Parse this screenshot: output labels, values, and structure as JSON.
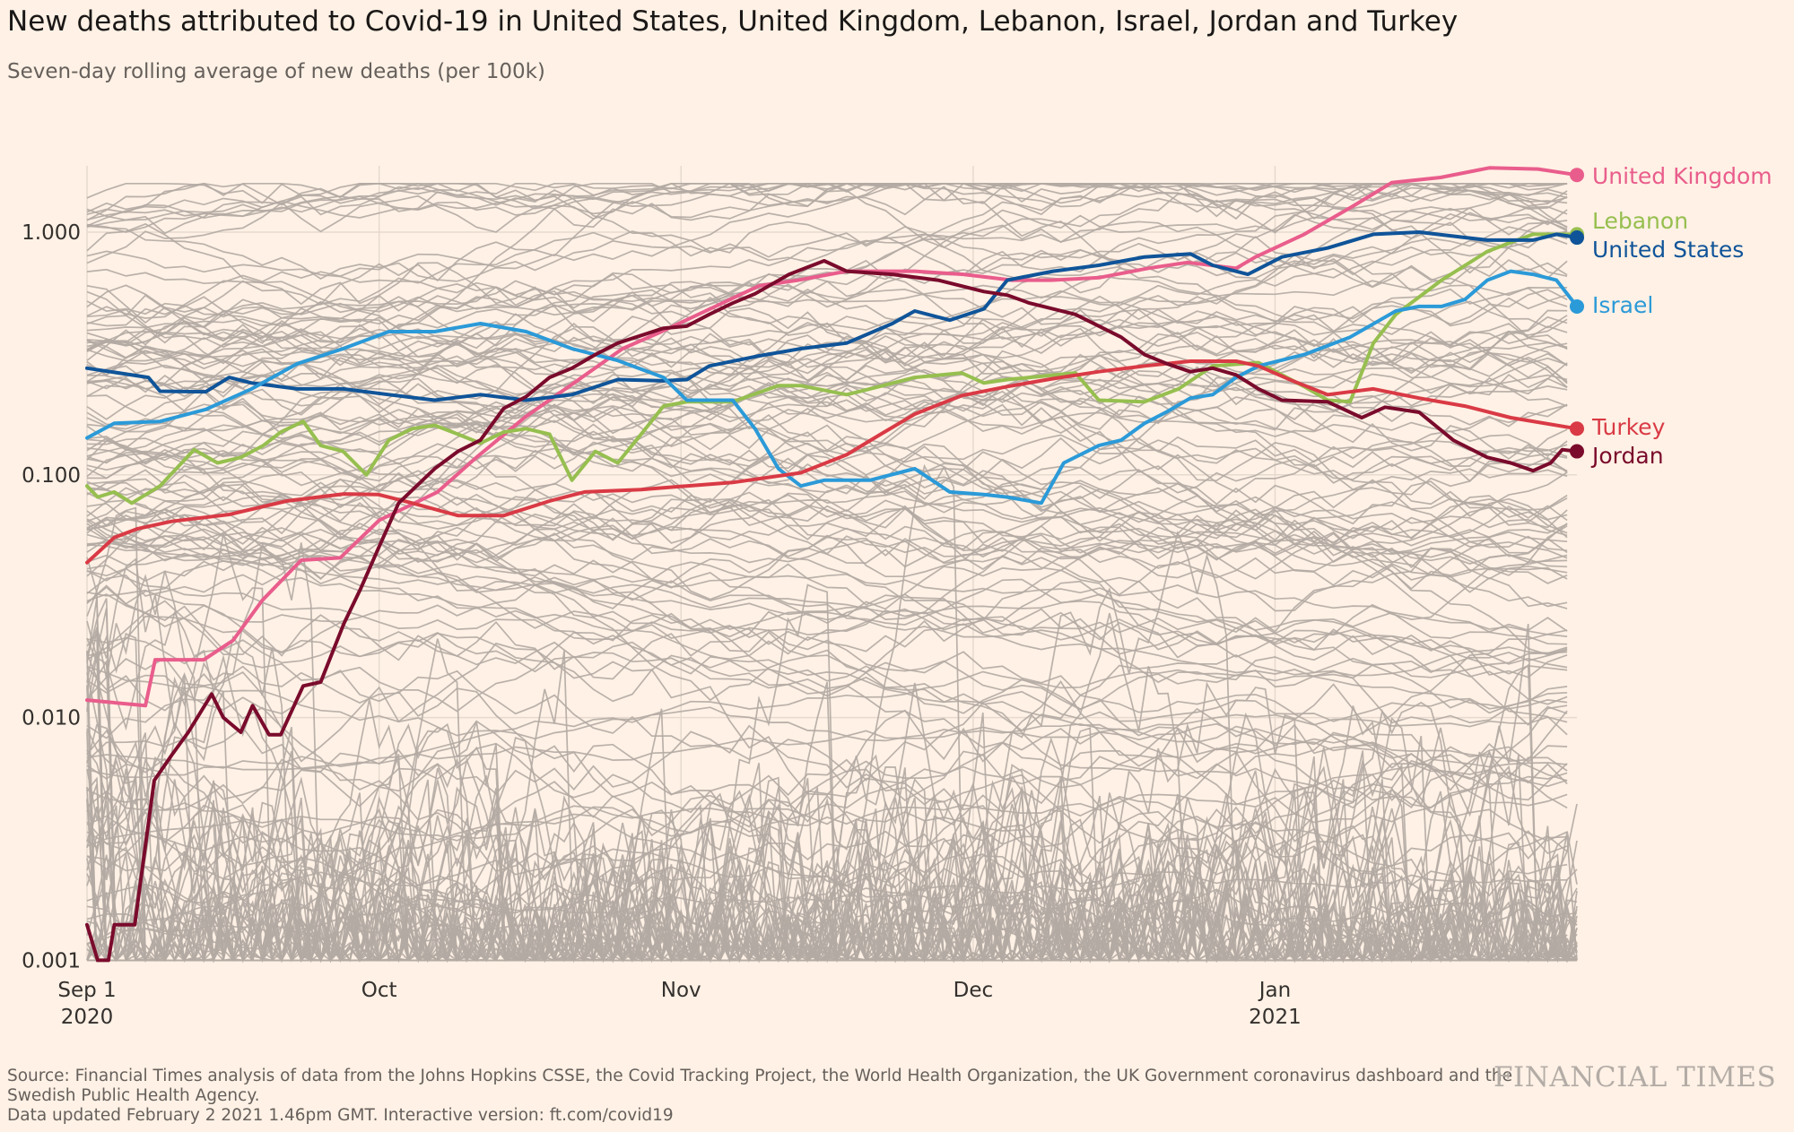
{
  "chart_data": {
    "type": "line",
    "title": "New deaths attributed to Covid-19 in United States, United Kingdom, Lebanon, Israel, Jordan and Turkey",
    "subtitle": "Seven-day rolling average of new deaths (per 100k)",
    "xlabel": "",
    "ylabel": "",
    "x_unit": "days since 2020-09-01",
    "xlim": [
      0,
      153
    ],
    "yscale": "log",
    "ylim": [
      0.001,
      1.88
    ],
    "y_ticks": [
      {
        "value": 1,
        "label": "1.000"
      },
      {
        "value": 0.1,
        "label": "0.100"
      },
      {
        "value": 0.01,
        "label": "0.010"
      },
      {
        "value": 0.001,
        "label": "0.001"
      }
    ],
    "x_ticks": [
      {
        "day": 0,
        "label": "Sep 1",
        "year": "2020"
      },
      {
        "day": 30,
        "label": "Oct",
        "year": ""
      },
      {
        "day": 61,
        "label": "Nov",
        "year": ""
      },
      {
        "day": 91,
        "label": "Dec",
        "year": ""
      },
      {
        "day": 122,
        "label": "Jan",
        "year": "2021"
      }
    ],
    "grid": true,
    "legend": "direct labels at right end of lines",
    "series": [
      {
        "name": "United Kingdom",
        "color": "#e95d8c",
        "x": [
          0,
          6,
          7,
          12,
          15,
          18,
          22,
          26,
          30,
          36,
          40,
          45,
          50,
          55,
          59,
          64,
          69,
          73,
          78,
          85,
          90,
          95,
          99,
          104,
          109,
          113,
          118,
          120,
          125,
          130,
          134,
          139,
          144,
          149,
          153
        ],
        "values": [
          0.0118,
          0.0112,
          0.0173,
          0.0173,
          0.0208,
          0.0304,
          0.0445,
          0.0455,
          0.065,
          0.085,
          0.118,
          0.173,
          0.239,
          0.331,
          0.389,
          0.483,
          0.601,
          0.634,
          0.69,
          0.69,
          0.67,
          0.634,
          0.634,
          0.65,
          0.71,
          0.75,
          0.71,
          0.79,
          0.98,
          1.28,
          1.6,
          1.68,
          1.84,
          1.82,
          1.72
        ]
      },
      {
        "name": "Lebanon",
        "color": "#96bf4f",
        "x": [
          0,
          1.1,
          2.8,
          4.6,
          7.5,
          11,
          13.4,
          15.8,
          18.1,
          19.9,
          22.2,
          24,
          26.3,
          28.7,
          31,
          33.4,
          35.7,
          38.1,
          40.4,
          42.8,
          45.1,
          47.5,
          49.8,
          52.2,
          54.5,
          56.9,
          59.2,
          61.6,
          66.3,
          71,
          73.3,
          78,
          80.4,
          85,
          89.8,
          92.1,
          94.5,
          96.8,
          101.5,
          103.9,
          108.6,
          112.1,
          115.6,
          120.3,
          125,
          127.4,
          129.7,
          132.1,
          134.4,
          139.1,
          143.8,
          146.2,
          148.5,
          153
        ],
        "values": [
          0.09,
          0.081,
          0.085,
          0.0765,
          0.09,
          0.127,
          0.112,
          0.118,
          0.132,
          0.15,
          0.166,
          0.132,
          0.125,
          0.1,
          0.139,
          0.155,
          0.16,
          0.147,
          0.135,
          0.15,
          0.155,
          0.147,
          0.095,
          0.125,
          0.112,
          0.147,
          0.192,
          0.2,
          0.2,
          0.233,
          0.233,
          0.214,
          0.226,
          0.252,
          0.263,
          0.239,
          0.247,
          0.252,
          0.263,
          0.203,
          0.2,
          0.226,
          0.281,
          0.29,
          0.231,
          0.203,
          0.2,
          0.349,
          0.458,
          0.634,
          0.832,
          0.907,
          0.98,
          0.98
        ]
      },
      {
        "name": "United States",
        "color": "#0f5499",
        "x": [
          0,
          6.3,
          7.5,
          12.2,
          14.6,
          16.9,
          21.6,
          26.3,
          31,
          35.7,
          40.4,
          45.1,
          49.8,
          54.5,
          59.2,
          61.6,
          63.9,
          68.6,
          73.3,
          78,
          82.7,
          85,
          88.6,
          92.1,
          94.5,
          99.2,
          103.9,
          108.6,
          113.3,
          115.6,
          119.2,
          122.7,
          127.4,
          132.1,
          136.8,
          141.5,
          143.8,
          148.5,
          150.9,
          153
        ],
        "values": [
          0.275,
          0.252,
          0.221,
          0.22,
          0.252,
          0.239,
          0.226,
          0.226,
          0.214,
          0.203,
          0.214,
          0.203,
          0.214,
          0.247,
          0.244,
          0.247,
          0.281,
          0.307,
          0.331,
          0.349,
          0.42,
          0.473,
          0.434,
          0.483,
          0.634,
          0.69,
          0.73,
          0.79,
          0.814,
          0.73,
          0.67,
          0.79,
          0.86,
          0.98,
          1.0,
          0.95,
          0.927,
          0.927,
          0.98,
          0.95
        ]
      },
      {
        "name": "Israel",
        "color": "#2b9ad8",
        "x": [
          0,
          2.8,
          7.5,
          12.2,
          16.9,
          21.6,
          26.3,
          31,
          35.7,
          40.4,
          45.1,
          49.8,
          54.5,
          59.2,
          61.6,
          66.3,
          68.6,
          71,
          73.3,
          75.7,
          80.4,
          85,
          88.6,
          92.1,
          94.5,
          98,
          100.3,
          103.9,
          106.2,
          108.6,
          110.9,
          113.3,
          115.6,
          118,
          120.3,
          125,
          129.7,
          134.4,
          136.8,
          139.1,
          141.5,
          143.8,
          146.2,
          148.5,
          150.9,
          153
        ],
        "values": [
          0.142,
          0.163,
          0.166,
          0.186,
          0.226,
          0.287,
          0.331,
          0.389,
          0.389,
          0.42,
          0.389,
          0.331,
          0.296,
          0.252,
          0.203,
          0.203,
          0.155,
          0.106,
          0.09,
          0.095,
          0.095,
          0.106,
          0.085,
          0.083,
          0.081,
          0.0765,
          0.112,
          0.132,
          0.139,
          0.163,
          0.182,
          0.207,
          0.214,
          0.252,
          0.281,
          0.313,
          0.369,
          0.473,
          0.494,
          0.494,
          0.528,
          0.634,
          0.69,
          0.67,
          0.634,
          0.494
        ]
      },
      {
        "name": "Turkey",
        "color": "#d93a45",
        "x": [
          0,
          2.8,
          5.2,
          8.7,
          14.6,
          20.5,
          26.4,
          29.9,
          33.4,
          38.1,
          42.8,
          47.5,
          51.1,
          56.9,
          61.6,
          66.3,
          73.3,
          78,
          81.5,
          85,
          89.8,
          94.5,
          99.2,
          103.9,
          108.6,
          113.3,
          118,
          120.3,
          123.8,
          127.4,
          132.1,
          136.8,
          141.5,
          146.2,
          153
        ],
        "values": [
          0.0435,
          0.0552,
          0.06,
          0.0643,
          0.0686,
          0.078,
          0.0834,
          0.083,
          0.0765,
          0.068,
          0.068,
          0.078,
          0.085,
          0.087,
          0.09,
          0.093,
          0.102,
          0.121,
          0.147,
          0.178,
          0.212,
          0.231,
          0.249,
          0.266,
          0.281,
          0.294,
          0.294,
          0.281,
          0.244,
          0.214,
          0.226,
          0.207,
          0.192,
          0.172,
          0.155
        ]
      },
      {
        "name": "Jordan",
        "color": "#7a0b2c",
        "x": [
          0,
          1.1,
          2.2,
          2.8,
          4.9,
          6.9,
          8.7,
          10.4,
          12.8,
          14,
          15.8,
          17,
          18.7,
          19.9,
          22.2,
          24,
          26.4,
          28.1,
          29.9,
          32,
          35.7,
          38.1,
          40.4,
          42.8,
          45.1,
          47.5,
          49.8,
          52.2,
          54.5,
          59.2,
          61.6,
          63.9,
          66.3,
          68.6,
          72.1,
          75.7,
          78,
          82.7,
          87.4,
          92.1,
          94.5,
          96.8,
          101.5,
          106.2,
          108.6,
          110.9,
          113.3,
          115.6,
          118,
          120.3,
          122.7,
          127.4,
          130.9,
          133.3,
          136.8,
          140.3,
          143.8,
          146.2,
          148.5,
          150.3,
          151.5,
          153
        ],
        "values": [
          0.0014,
          0.001,
          0.001,
          0.0014,
          0.0014,
          0.0055,
          0.007,
          0.0087,
          0.0125,
          0.01,
          0.0087,
          0.0112,
          0.0085,
          0.0085,
          0.0135,
          0.014,
          0.0245,
          0.034,
          0.0496,
          0.0765,
          0.106,
          0.125,
          0.139,
          0.188,
          0.21,
          0.252,
          0.275,
          0.313,
          0.349,
          0.402,
          0.41,
          0.458,
          0.51,
          0.557,
          0.67,
          0.762,
          0.69,
          0.67,
          0.634,
          0.569,
          0.55,
          0.51,
          0.458,
          0.369,
          0.313,
          0.287,
          0.266,
          0.275,
          0.258,
          0.226,
          0.203,
          0.2,
          0.172,
          0.19,
          0.181,
          0.139,
          0.118,
          0.112,
          0.104,
          0.112,
          0.127,
          0.125
        ]
      }
    ]
  },
  "footer": {
    "source_line1": "Source: Financial Times analysis of data from the Johns Hopkins CSSE, the Covid Tracking Project, the World Health Organization, the UK Government coronavirus dashboard and the",
    "source_line2": "Swedish Public Health Agency.",
    "updated": "Data updated February 2 2021 1.46pm GMT. Interactive version: ft.com/covid19",
    "logo": "FINANCIAL TIMES"
  }
}
